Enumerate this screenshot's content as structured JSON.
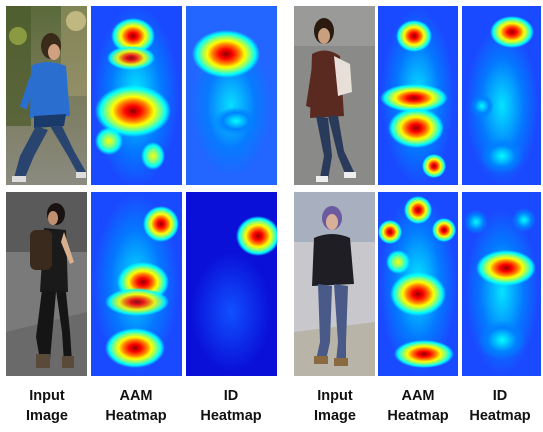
{
  "figure": {
    "captions": [
      {
        "line1": "Input",
        "line2": "Image"
      },
      {
        "line1": "AAM",
        "line2": "Heatmap"
      },
      {
        "line1": "ID",
        "line2": "Heatmap"
      },
      {
        "line1": "Input",
        "line2": "Image"
      },
      {
        "line1": "AAM",
        "line2": "Heatmap"
      },
      {
        "line1": "ID",
        "line2": "Heatmap"
      }
    ],
    "heatmap_colors": [
      "#00008f",
      "#0000ff",
      "#0080ff",
      "#00ffff",
      "#80ff80",
      "#ffff00",
      "#ff8000",
      "#ff0000",
      "#8f0000"
    ]
  }
}
